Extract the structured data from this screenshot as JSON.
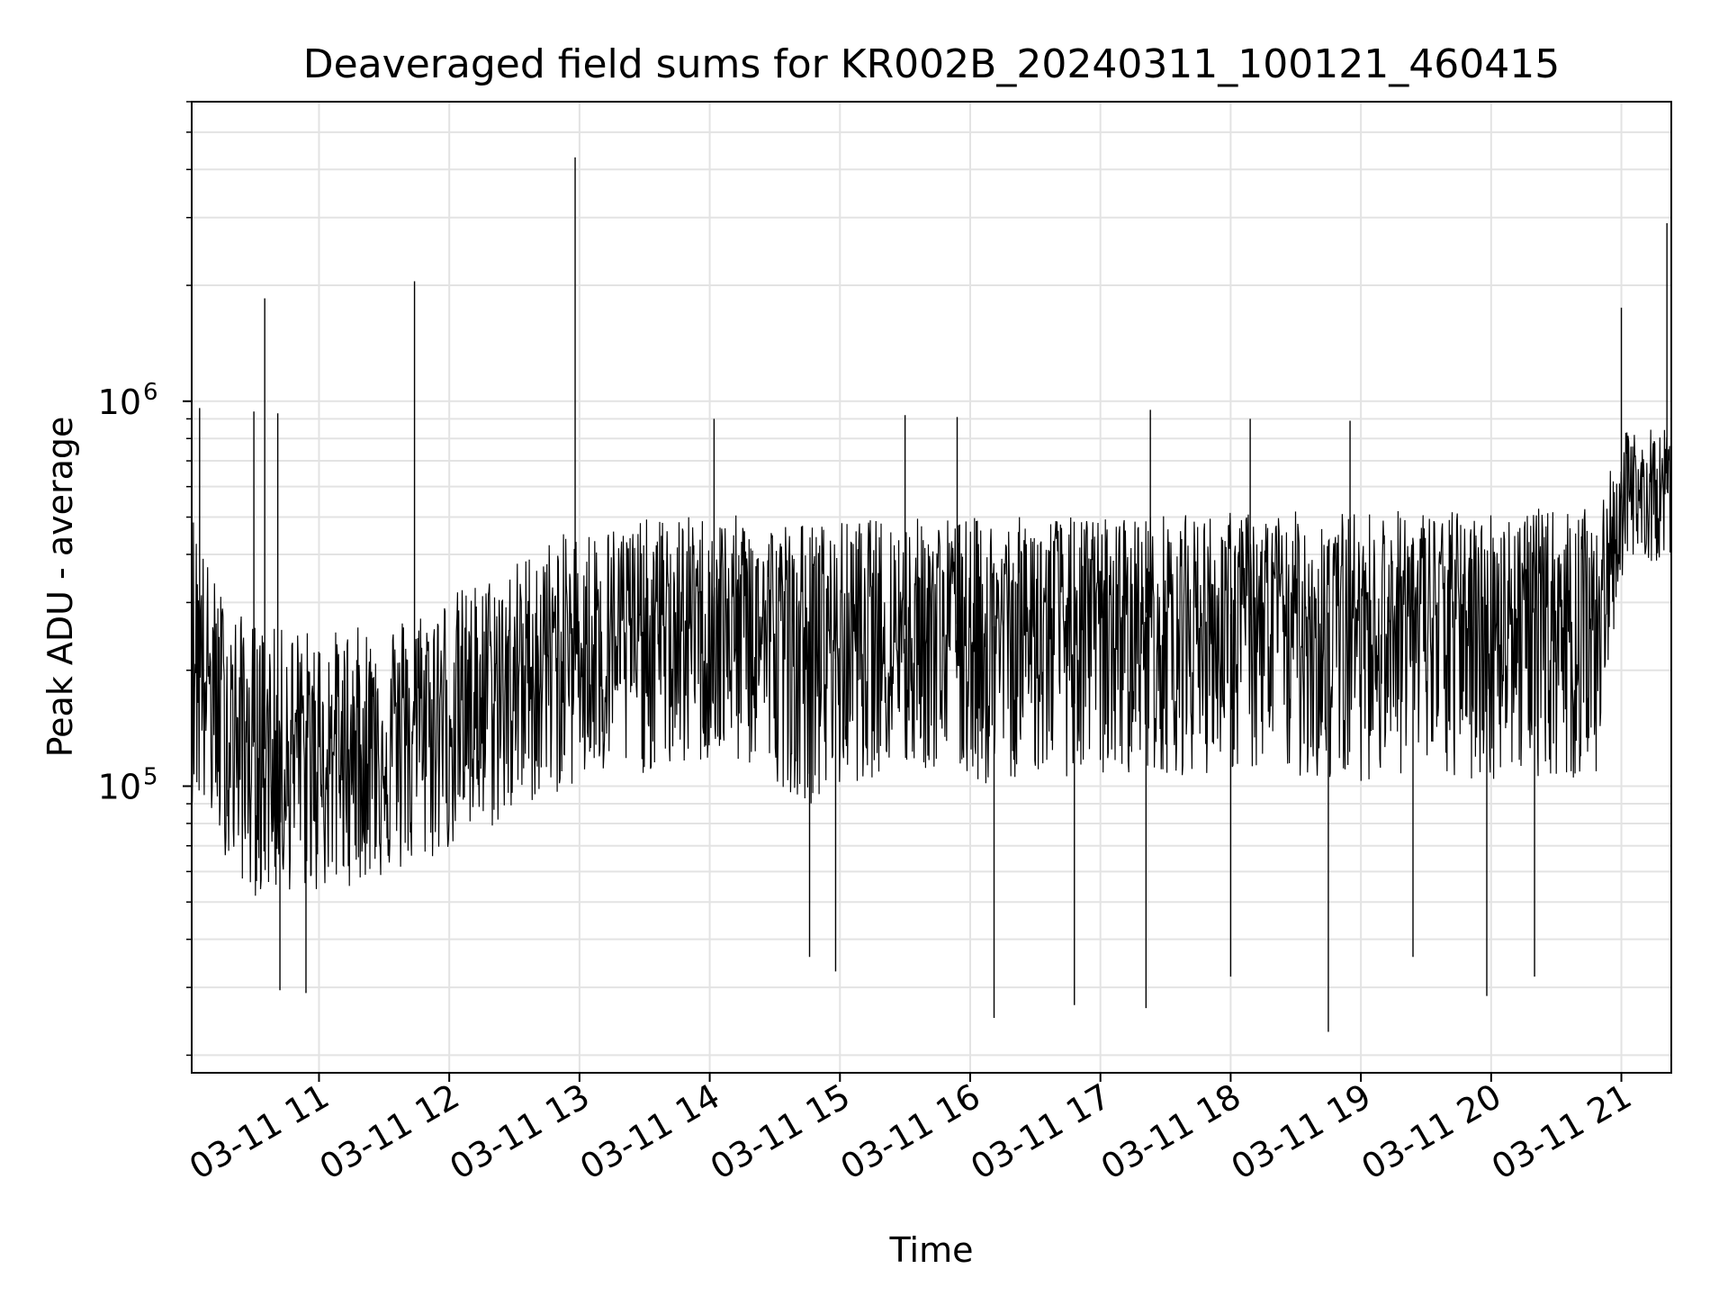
{
  "chart_data": {
    "type": "line",
    "title": "Deaveraged field sums for KR002B_20240311_100121_460415",
    "xlabel": "Time",
    "ylabel": "Peak ADU - average",
    "y_scale": "log",
    "ylim": [
      18000,
      6000000
    ],
    "xlim": [
      "2024-03-11 10:01:21",
      "2024-03-11 21:23:00"
    ],
    "x_ticks": [
      "03-11 11",
      "03-11 12",
      "03-11 13",
      "03-11 14",
      "03-11 15",
      "03-11 16",
      "03-11 17",
      "03-11 18",
      "03-11 19",
      "03-11 20",
      "03-11 21"
    ],
    "x_tick_times": [
      "2024-03-11 11:00",
      "2024-03-11 12:00",
      "2024-03-11 13:00",
      "2024-03-11 14:00",
      "2024-03-11 15:00",
      "2024-03-11 16:00",
      "2024-03-11 17:00",
      "2024-03-11 18:00",
      "2024-03-11 19:00",
      "2024-03-11 20:00",
      "2024-03-11 21:00"
    ],
    "y_major_ticks": [
      {
        "value": 100000,
        "base": "10",
        "exp": "5"
      },
      {
        "value": 1000000,
        "base": "10",
        "exp": "6"
      }
    ],
    "grid": true,
    "line_color": "#000000",
    "series": [
      {
        "x": [
          "2024-03-11 10:01",
          "2024-03-11 10:10",
          "2024-03-11 10:20",
          "2024-03-11 10:30",
          "2024-03-11 10:40",
          "2024-03-11 10:50",
          "2024-03-11 11:00",
          "2024-03-11 11:10",
          "2024-03-11 11:20",
          "2024-03-11 11:30",
          "2024-03-11 11:40",
          "2024-03-11 11:50",
          "2024-03-11 12:00",
          "2024-03-11 12:10",
          "2024-03-11 12:20",
          "2024-03-11 12:30",
          "2024-03-11 12:40",
          "2024-03-11 12:50",
          "2024-03-11 13:00",
          "2024-03-11 13:10",
          "2024-03-11 13:20",
          "2024-03-11 13:30",
          "2024-03-11 13:40",
          "2024-03-11 13:50",
          "2024-03-11 14:00",
          "2024-03-11 14:10",
          "2024-03-11 14:20",
          "2024-03-11 14:30",
          "2024-03-11 14:40",
          "2024-03-11 14:50",
          "2024-03-11 15:00",
          "2024-03-11 15:10",
          "2024-03-11 15:20",
          "2024-03-11 15:30",
          "2024-03-11 15:40",
          "2024-03-11 15:50",
          "2024-03-11 16:00",
          "2024-03-11 16:10",
          "2024-03-11 16:20",
          "2024-03-11 16:30",
          "2024-03-11 16:40",
          "2024-03-11 16:50",
          "2024-03-11 17:00",
          "2024-03-11 17:10",
          "2024-03-11 17:20",
          "2024-03-11 17:30",
          "2024-03-11 17:40",
          "2024-03-11 17:50",
          "2024-03-11 18:00",
          "2024-03-11 18:10",
          "2024-03-11 18:20",
          "2024-03-11 18:30",
          "2024-03-11 18:40",
          "2024-03-11 18:50",
          "2024-03-11 19:00",
          "2024-03-11 19:10",
          "2024-03-11 19:20",
          "2024-03-11 19:30",
          "2024-03-11 19:40",
          "2024-03-11 19:50",
          "2024-03-11 20:00",
          "2024-03-11 20:10",
          "2024-03-11 20:20",
          "2024-03-11 20:30",
          "2024-03-11 20:40",
          "2024-03-11 20:50",
          "2024-03-11 21:00",
          "2024-03-11 21:10",
          "2024-03-11 21:20"
        ],
        "y": [
          280000,
          180000,
          140000,
          130000,
          120000,
          130000,
          120000,
          125000,
          130000,
          135000,
          140000,
          150000,
          160000,
          165000,
          175000,
          190000,
          210000,
          225000,
          235000,
          240000,
          250000,
          255000,
          260000,
          262000,
          265000,
          265000,
          262000,
          255000,
          250000,
          245000,
          250000,
          255000,
          260000,
          262000,
          265000,
          265000,
          262000,
          260000,
          262000,
          265000,
          268000,
          262000,
          265000,
          270000,
          275000,
          272000,
          270000,
          275000,
          280000,
          278000,
          275000,
          280000,
          285000,
          280000,
          282000,
          285000,
          288000,
          285000,
          282000,
          280000,
          285000,
          288000,
          290000,
          285000,
          285000,
          290000,
          560000,
          580000,
          590000
        ],
        "lower_envelope": [
          110000,
          90000,
          70000,
          60000,
          60000,
          62000,
          60000,
          62000,
          65000,
          66000,
          68000,
          72000,
          78000,
          82000,
          88000,
          95000,
          105000,
          110000,
          115000,
          118000,
          122000,
          124000,
          126000,
          128000,
          130000,
          130000,
          128000,
          120000,
          110000,
          105000,
          115000,
          120000,
          124000,
          125000,
          126000,
          126000,
          120000,
          115000,
          122000,
          125000,
          126000,
          120000,
          122000,
          125000,
          128000,
          126000,
          124000,
          126000,
          128000,
          126000,
          120000,
          125000,
          120000,
          118000,
          122000,
          124000,
          126000,
          124000,
          120000,
          118000,
          122000,
          125000,
          126000,
          122000,
          120000,
          124000,
          380000,
          400000,
          420000
        ],
        "upper_envelope": [
          520000,
          340000,
          270000,
          250000,
          240000,
          245000,
          235000,
          240000,
          245000,
          255000,
          265000,
          280000,
          300000,
          315000,
          335000,
          360000,
          400000,
          420000,
          440000,
          450000,
          460000,
          465000,
          470000,
          475000,
          480000,
          478000,
          472000,
          465000,
          460000,
          455000,
          460000,
          465000,
          470000,
          472000,
          475000,
          475000,
          472000,
          470000,
          472000,
          475000,
          478000,
          472000,
          475000,
          480000,
          485000,
          482000,
          480000,
          485000,
          490000,
          488000,
          485000,
          490000,
          495000,
          490000,
          492000,
          495000,
          498000,
          495000,
          492000,
          490000,
          495000,
          498000,
          500000,
          495000,
          495000,
          500000,
          800000,
          820000,
          830000
        ],
        "spikes": [
          {
            "t": "2024-03-11 10:35",
            "y": 1850000
          },
          {
            "t": "2024-03-11 11:44",
            "y": 2050000
          },
          {
            "t": "2024-03-11 12:58",
            "y": 4300000
          },
          {
            "t": "2024-03-11 21:00",
            "y": 1750000
          },
          {
            "t": "2024-03-11 21:21",
            "y": 2900000
          },
          {
            "t": "2024-03-11 10:30",
            "y": 940000
          },
          {
            "t": "2024-03-11 10:41",
            "y": 930000
          },
          {
            "t": "2024-03-11 14:02",
            "y": 900000
          },
          {
            "t": "2024-03-11 15:30",
            "y": 920000
          },
          {
            "t": "2024-03-11 15:54",
            "y": 910000
          },
          {
            "t": "2024-03-11 17:23",
            "y": 950000
          },
          {
            "t": "2024-03-11 18:09",
            "y": 900000
          },
          {
            "t": "2024-03-11 18:55",
            "y": 890000
          },
          {
            "t": "2024-03-11 10:05",
            "y": 960000
          }
        ],
        "dips": [
          {
            "t": "2024-03-11 10:54",
            "y": 29000
          },
          {
            "t": "2024-03-11 10:42",
            "y": 29500
          },
          {
            "t": "2024-03-11 16:11",
            "y": 25000
          },
          {
            "t": "2024-03-11 16:48",
            "y": 27000
          },
          {
            "t": "2024-03-11 17:21",
            "y": 26500
          },
          {
            "t": "2024-03-11 18:45",
            "y": 23000
          },
          {
            "t": "2024-03-11 19:58",
            "y": 28500
          },
          {
            "t": "2024-03-11 14:58",
            "y": 33000
          },
          {
            "t": "2024-03-11 14:46",
            "y": 36000
          },
          {
            "t": "2024-03-11 19:24",
            "y": 36000
          },
          {
            "t": "2024-03-11 18:00",
            "y": 32000
          },
          {
            "t": "2024-03-11 20:20",
            "y": 32000
          }
        ]
      }
    ]
  }
}
